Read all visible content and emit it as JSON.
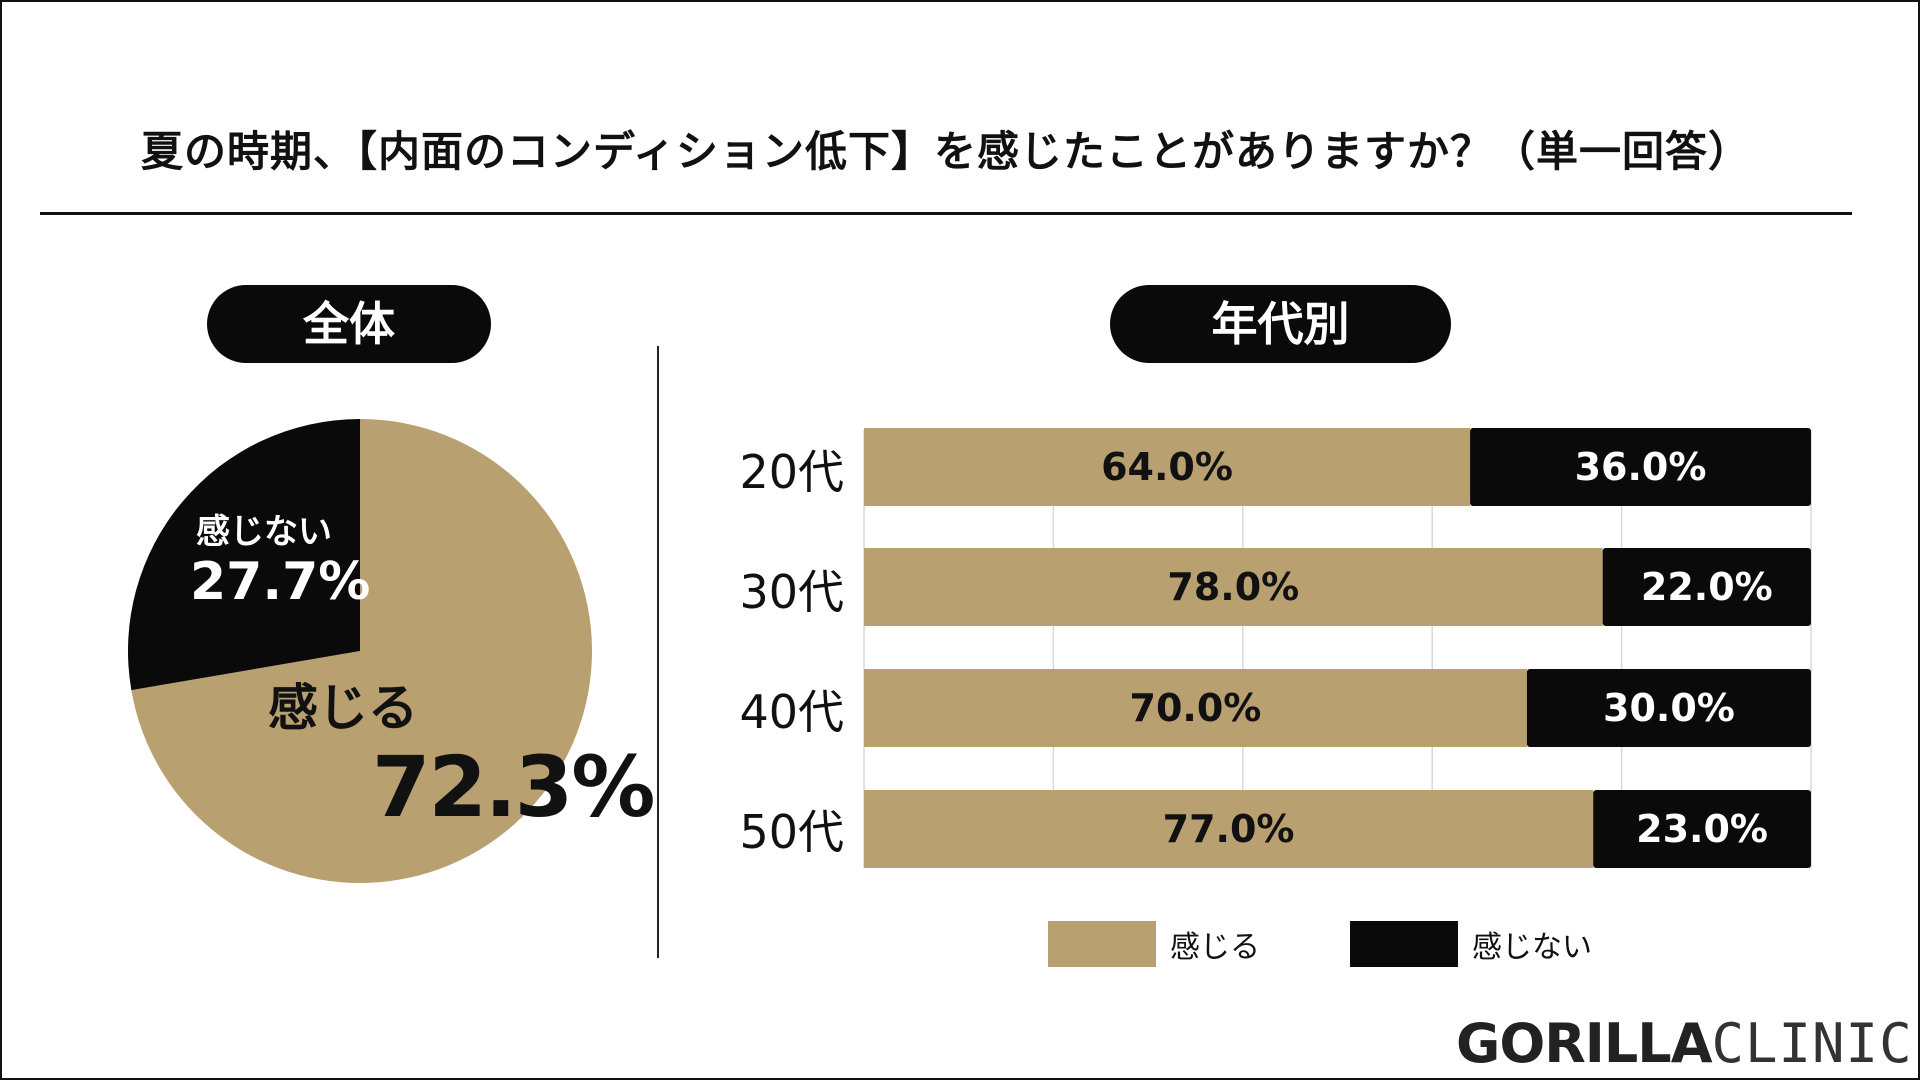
{
  "title": "夏の時期、【内面のコンディション低下】を感じたことがありますか？（単一回答）",
  "colors": {
    "feel": "#b9a070",
    "notfeel": "#0a0a0a"
  },
  "chart_data": [
    {
      "type": "pie",
      "heading": "全体",
      "slices": [
        {
          "name": "感じる",
          "value": 72.3,
          "label": "72.3%"
        },
        {
          "name": "感じない",
          "value": 27.7,
          "label": "27.7%"
        }
      ]
    },
    {
      "type": "bar",
      "orientation": "horizontal",
      "stacked": true,
      "heading": "年代別",
      "categories": [
        "20代",
        "30代",
        "40代",
        "50代"
      ],
      "series": [
        {
          "name": "感じる",
          "values": [
            64.0,
            78.0,
            70.0,
            77.0
          ],
          "labels": [
            "64.0%",
            "78.0%",
            "70.0%",
            "77.0%"
          ]
        },
        {
          "name": "感じない",
          "values": [
            36.0,
            22.0,
            30.0,
            23.0
          ],
          "labels": [
            "36.0%",
            "22.0%",
            "30.0%",
            "23.0%"
          ]
        }
      ],
      "xlim": [
        0,
        100
      ],
      "grid": true,
      "legend": [
        "感じる",
        "感じない"
      ],
      "legend_position": "bottom"
    }
  ],
  "logo": {
    "bold": "GORILLA",
    "light": "CLINIC"
  }
}
